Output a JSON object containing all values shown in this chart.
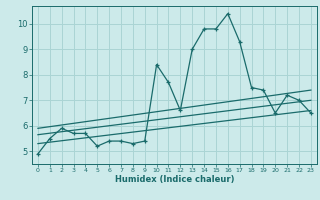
{
  "xlabel": "Humidex (Indice chaleur)",
  "background_color": "#cceaea",
  "grid_color": "#aad4d4",
  "line_color": "#1a6b6b",
  "xlim": [
    -0.5,
    23.5
  ],
  "ylim": [
    4.5,
    10.7
  ],
  "xticks": [
    0,
    1,
    2,
    3,
    4,
    5,
    6,
    7,
    8,
    9,
    10,
    11,
    12,
    13,
    14,
    15,
    16,
    17,
    18,
    19,
    20,
    21,
    22,
    23
  ],
  "yticks": [
    5,
    6,
    7,
    8,
    9,
    10
  ],
  "main_x": [
    0,
    1,
    2,
    3,
    4,
    5,
    6,
    7,
    8,
    9,
    10,
    11,
    12,
    13,
    14,
    15,
    16,
    17,
    18,
    19,
    20,
    21,
    22,
    23
  ],
  "main_y": [
    4.9,
    5.5,
    5.9,
    5.7,
    5.7,
    5.2,
    5.4,
    5.4,
    5.3,
    5.4,
    8.4,
    7.7,
    6.6,
    9.0,
    9.8,
    9.8,
    10.4,
    9.3,
    7.5,
    7.4,
    6.5,
    7.2,
    7.0,
    6.5
  ],
  "reg_lines": [
    {
      "x0": 0,
      "y0": 5.3,
      "x1": 23,
      "y1": 6.6
    },
    {
      "x0": 0,
      "y0": 5.65,
      "x1": 23,
      "y1": 7.0
    },
    {
      "x0": 0,
      "y0": 5.9,
      "x1": 23,
      "y1": 7.4
    }
  ]
}
